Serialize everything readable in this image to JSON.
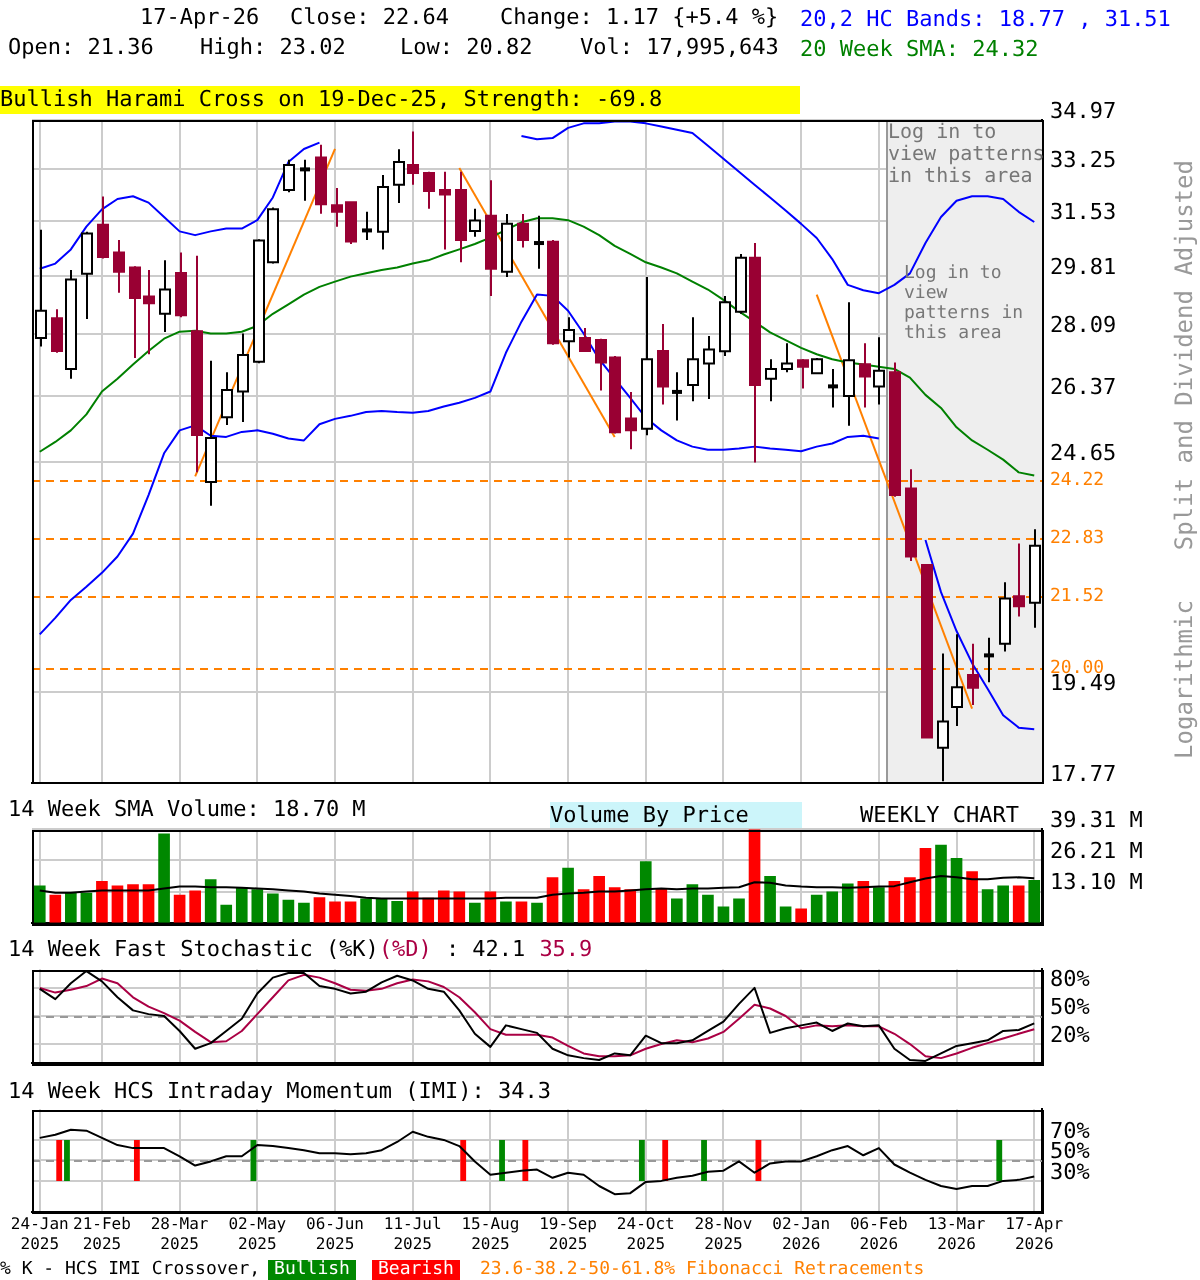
{
  "chart_data": [
    {
      "type": "candlestick",
      "log": true,
      "grid": true,
      "tick_labels": "y",
      "marker": "none",
      "legend": "top right",
      "categories": [
        "24-Jan 2025",
        null,
        null,
        null,
        "21-Feb 2025",
        null,
        null,
        null,
        null,
        "28-Mar 2025",
        null,
        null,
        null,
        null,
        "02-May 2025",
        null,
        null,
        null,
        null,
        "06-Jun 2025",
        null,
        null,
        null,
        null,
        "11-Jul 2025",
        null,
        null,
        null,
        null,
        "15-Aug 2025",
        null,
        null,
        null,
        null,
        "19-Sep 2025",
        null,
        null,
        null,
        null,
        "24-Oct 2025",
        null,
        null,
        null,
        null,
        "28-Nov 2025",
        null,
        null,
        null,
        null,
        "02-Jan 2026",
        null,
        null,
        null,
        null,
        "06-Feb 2026",
        null,
        null,
        null,
        null,
        "13-Mar 2026",
        null,
        null,
        null,
        null,
        "17-Apr 2026"
      ],
      "ohlc": [
        [
          27.99,
          31.26,
          27.75,
          28.78
        ],
        [
          28.56,
          28.82,
          27.57,
          27.62
        ],
        [
          27.12,
          30.0,
          26.85,
          29.71
        ],
        [
          29.89,
          31.2,
          28.54,
          31.14
        ],
        [
          31.42,
          32.34,
          30.36,
          30.4
        ],
        [
          30.54,
          30.94,
          29.31,
          29.95
        ],
        [
          30.08,
          30.12,
          27.42,
          29.16
        ],
        [
          29.2,
          30.0,
          27.53,
          29.0
        ],
        [
          28.69,
          30.3,
          28.16,
          29.41
        ],
        [
          29.91,
          30.54,
          28.59,
          28.65
        ],
        [
          28.18,
          30.44,
          24.4,
          25.35
        ],
        [
          24.16,
          27.35,
          23.58,
          25.27
        ],
        [
          25.81,
          27.03,
          25.61,
          26.54
        ],
        [
          26.5,
          28.12,
          25.69,
          27.51
        ],
        [
          27.32,
          30.96,
          27.28,
          30.92
        ],
        [
          30.24,
          31.98,
          30.2,
          31.92
        ],
        [
          32.56,
          33.58,
          32.48,
          33.4
        ],
        [
          33.25,
          33.58,
          32.2,
          33.25
        ],
        [
          33.66,
          34.1,
          31.78,
          32.09
        ],
        [
          32.05,
          32.62,
          31.36,
          31.84
        ],
        [
          32.15,
          32.15,
          30.81,
          30.89
        ],
        [
          31.24,
          31.84,
          30.94,
          31.24
        ],
        [
          31.2,
          33.06,
          30.64,
          32.66
        ],
        [
          32.73,
          33.94,
          32.13,
          33.5
        ],
        [
          33.4,
          34.56,
          32.73,
          33.13
        ],
        [
          33.13,
          33.17,
          31.94,
          32.52
        ],
        [
          32.56,
          33.17,
          30.64,
          32.41
        ],
        [
          32.56,
          33.17,
          30.24,
          30.94
        ],
        [
          31.22,
          31.94,
          31.04,
          31.56
        ],
        [
          31.71,
          32.88,
          29.22,
          30.04
        ],
        [
          29.95,
          31.77,
          29.79,
          31.45
        ],
        [
          31.45,
          31.77,
          30.7,
          30.94
        ],
        [
          30.84,
          31.71,
          30.04,
          30.84
        ],
        [
          30.88,
          30.94,
          27.8,
          27.84
        ],
        [
          27.9,
          28.59,
          27.44,
          28.22
        ],
        [
          27.99,
          28.28,
          27.6,
          27.62
        ],
        [
          27.93,
          27.97,
          26.53,
          27.3
        ],
        [
          27.44,
          27.48,
          25.39,
          25.42
        ],
        [
          25.78,
          26.49,
          24.98,
          25.47
        ],
        [
          25.51,
          29.79,
          25.34,
          27.39
        ],
        [
          27.62,
          28.39,
          26.15,
          26.64
        ],
        [
          26.49,
          27.03,
          25.73,
          26.49
        ],
        [
          26.68,
          28.59,
          26.24,
          27.39
        ],
        [
          27.27,
          28.05,
          26.3,
          27.66
        ],
        [
          27.61,
          29.22,
          27.48,
          29.03
        ],
        [
          28.75,
          30.5,
          28.69,
          30.38
        ],
        [
          30.38,
          30.84,
          24.65,
          26.68
        ],
        [
          26.85,
          27.39,
          26.24,
          27.12
        ],
        [
          27.12,
          27.84,
          27.03,
          27.27
        ],
        [
          27.36,
          27.39,
          26.58,
          27.18
        ],
        [
          27.0,
          27.42,
          27.0,
          27.39
        ],
        [
          26.64,
          27.12,
          26.07,
          26.64
        ],
        [
          26.38,
          29.03,
          25.59,
          27.36
        ],
        [
          27.25,
          27.84,
          26.07,
          26.91
        ],
        [
          26.64,
          28.01,
          26.15,
          27.07
        ],
        [
          27.03,
          27.3,
          23.8,
          23.84
        ],
        [
          24.0,
          24.48,
          22.29,
          22.39
        ],
        [
          22.2,
          22.2,
          18.61,
          18.61
        ],
        [
          18.42,
          20.28,
          17.8,
          18.92
        ],
        [
          19.2,
          20.68,
          18.83,
          19.59
        ],
        [
          19.84,
          20.48,
          19.24,
          19.58
        ],
        [
          20.24,
          20.61,
          19.69,
          20.24
        ],
        [
          20.48,
          21.81,
          20.32,
          21.45
        ],
        [
          21.5,
          22.69,
          21.06,
          21.28
        ],
        [
          21.36,
          23.02,
          20.82,
          22.64
        ]
      ],
      "colors": [
        "#ffffff",
        "#990033",
        "#ffffff",
        "#ffffff",
        "#990033",
        "#990033",
        "#990033",
        "#990033",
        "#ffffff",
        "#990033",
        "#990033",
        "#ffffff",
        "#ffffff",
        "#ffffff",
        "#ffffff",
        "#ffffff",
        "#ffffff",
        "#000000",
        "#990033",
        "#990033",
        "#990033",
        "#000000",
        "#ffffff",
        "#ffffff",
        "#990033",
        "#990033",
        "#990033",
        "#990033",
        "#ffffff",
        "#990033",
        "#ffffff",
        "#990033",
        "#000000",
        "#990033",
        "#ffffff",
        "#990033",
        "#990033",
        "#990033",
        "#990033",
        "#ffffff",
        "#990033",
        "#000000",
        "#ffffff",
        "#ffffff",
        "#ffffff",
        "#ffffff",
        "#990033",
        "#ffffff",
        "#ffffff",
        "#990033",
        "#ffffff",
        "#000000",
        "#ffffff",
        "#990033",
        "#ffffff",
        "#990033",
        "#990033",
        "#990033",
        "#ffffff",
        "#ffffff",
        "#990033",
        "#000000",
        "#ffffff",
        "#990033",
        "#ffffff"
      ],
      "series": [
        {
          "type": "line",
          "name": "20,2 HC Bands: 18.77 , 31.51",
          "color": "#0000ff",
          "values": [
            30.04,
            30.2,
            30.64,
            31.36,
            31.92,
            32.26,
            32.35,
            32.14,
            31.67,
            31.21,
            31.09,
            31.21,
            31.3,
            31.3,
            31.57,
            32.31,
            33.5,
            33.95,
            34.17,
            null,
            null,
            null,
            null,
            null,
            null,
            null,
            null,
            null,
            null,
            null,
            null,
            34.4,
            34.29,
            34.33,
            34.69,
            34.85,
            34.85,
            34.92,
            34.92,
            34.85,
            34.74,
            34.62,
            34.51,
            34.06,
            33.61,
            33.17,
            32.73,
            32.31,
            31.88,
            31.45,
            31.0,
            30.34,
            29.55,
            29.39,
            29.3,
            29.55,
            29.9,
            30.84,
            31.67,
            32.2,
            32.35,
            32.35,
            32.26,
            31.84,
            31.51
          ]
        },
        {
          "type": "line",
          "color": "#0000ff",
          "values": [
            20.68,
            21.03,
            21.42,
            21.71,
            22.02,
            22.39,
            22.92,
            23.84,
            24.88,
            25.47,
            25.6,
            25.33,
            25.3,
            25.43,
            25.47,
            25.38,
            25.26,
            25.21,
            25.63,
            25.77,
            25.85,
            25.95,
            25.98,
            25.95,
            25.93,
            25.98,
            26.1,
            26.2,
            26.33,
            26.5,
            27.57,
            28.46,
            29.26,
            29.22,
            28.78,
            28.12,
            27.39,
            26.85,
            26.33,
            25.8,
            25.47,
            25.21,
            25.05,
            24.97,
            24.97,
            25.0,
            25.05,
            25.0,
            24.97,
            24.93,
            25.05,
            25.13,
            25.3,
            25.33,
            25.26,
            null,
            null,
            22.77,
            21.59,
            20.75,
            20.08,
            19.56,
            19.04,
            18.8,
            18.77
          ]
        },
        {
          "type": "line",
          "name": "20 Week SMA: 24.32",
          "color": "#008000",
          "values": [
            24.92,
            25.17,
            25.47,
            25.89,
            26.5,
            26.85,
            27.24,
            27.62,
            27.97,
            28.17,
            28.2,
            28.12,
            28.12,
            28.17,
            28.34,
            28.69,
            28.97,
            29.26,
            29.49,
            29.65,
            29.8,
            29.9,
            30.0,
            30.08,
            30.2,
            30.3,
            30.48,
            30.64,
            30.81,
            31.01,
            31.26,
            31.5,
            31.63,
            31.63,
            31.57,
            31.36,
            31.09,
            30.75,
            30.5,
            30.24,
            30.08,
            29.9,
            29.65,
            29.41,
            29.1,
            28.76,
            28.46,
            28.15,
            27.93,
            27.71,
            27.53,
            27.39,
            27.3,
            27.24,
            27.18,
            27.12,
            26.88,
            26.41,
            26.06,
            25.55,
            25.21,
            24.97,
            24.72,
            24.4,
            24.32
          ]
        },
        {
          "type": "line",
          "color": "#ff8000",
          "values": [
            null,
            null,
            null,
            null,
            null,
            null,
            null,
            null,
            null,
            null,
            24.3,
            null,
            null,
            null,
            null,
            null,
            null,
            null,
            null,
            33.95,
            null,
            null,
            null,
            null,
            null,
            null,
            null,
            null,
            null,
            null,
            null,
            null,
            null,
            null,
            null,
            null,
            null,
            null,
            null,
            null,
            null,
            null,
            null,
            null,
            null,
            null,
            null,
            null,
            null,
            null,
            null,
            null,
            null,
            null,
            null,
            null,
            null,
            null,
            null,
            null,
            null,
            null,
            null,
            null,
            null
          ]
        },
        {
          "type": "line",
          "color": "#ff8000",
          "values": [
            null,
            null,
            null,
            null,
            null,
            null,
            null,
            null,
            null,
            null,
            null,
            null,
            null,
            null,
            null,
            null,
            null,
            null,
            null,
            null,
            null,
            null,
            null,
            null,
            null,
            null,
            null,
            33.3,
            null,
            null,
            null,
            null,
            null,
            null,
            null,
            null,
            null,
            25.3,
            null,
            null,
            null,
            null,
            null,
            null,
            null,
            null,
            null,
            null,
            null,
            null,
            null,
            null,
            null,
            null,
            null,
            null,
            null,
            null,
            null,
            null,
            null,
            null,
            null,
            null,
            null
          ]
        },
        {
          "type": "line",
          "color": "#ff8000",
          "values": [
            null,
            null,
            null,
            null,
            null,
            null,
            null,
            null,
            null,
            null,
            null,
            null,
            null,
            null,
            null,
            null,
            null,
            null,
            null,
            null,
            null,
            null,
            null,
            null,
            null,
            null,
            null,
            null,
            null,
            null,
            null,
            null,
            null,
            null,
            null,
            null,
            null,
            null,
            null,
            null,
            null,
            null,
            null,
            null,
            null,
            null,
            null,
            null,
            null,
            null,
            29.26,
            null,
            null,
            null,
            null,
            null,
            null,
            null,
            null,
            null,
            19.17,
            null,
            null,
            null,
            null
          ]
        }
      ],
      "ylim": [
        17.77,
        34.97
      ],
      "yticks": [
        17.77,
        19.49,
        24.65,
        26.37,
        28.09,
        29.81,
        31.53,
        33.25,
        34.97
      ],
      "ref_lines": [
        {
          "axis": "y",
          "value": 24.22,
          "label": "24.22",
          "color": "#ff8000",
          "line_style": "dashed"
        },
        {
          "axis": "y",
          "value": 22.83,
          "label": "22.83",
          "color": "#ff8000",
          "line_style": "dashed"
        },
        {
          "axis": "y",
          "value": 21.52,
          "label": "21.52",
          "color": "#ff8000",
          "line_style": "dashed"
        },
        {
          "axis": "y",
          "value": 20.0,
          "label": "20.00",
          "color": "#ff8000",
          "line_style": "dashed"
        }
      ],
      "bands": [
        {
          "axis": "x",
          "from": "06-Feb 2026",
          "to": "17-Apr 2026",
          "color": "#eeeeee"
        }
      ],
      "annotations": [
        "17-Apr-26",
        "Close: 22.64",
        "Change: 1.17 {+5.4 %}",
        "Open: 21.36",
        "High: 23.02",
        "Low: 20.82",
        "Vol: 17,995,643",
        "Bullish Harami Cross on 19-Dec-25, Strength: -69.8",
        "Log in to view patterns in this area",
        "Log in to view patterns in this area",
        "Split and Dividend Adjusted",
        "Logarithmic",
        "WEEKLY CHART",
        "Volume By Price",
        "23.6-38.2-50-61.8% Fibonacci Retracements"
      ]
    },
    {
      "type": "bar",
      "title": "14 Week SMA Volume: 18.70 M",
      "grid": true,
      "tick_labels": "y",
      "marker": "none",
      "categories": [
        "24-Jan 2025",
        null,
        null,
        null,
        "21-Feb 2025",
        null,
        null,
        null,
        null,
        "28-Mar 2025",
        null,
        null,
        null,
        null,
        "02-May 2025",
        null,
        null,
        null,
        null,
        "06-Jun 2025",
        null,
        null,
        null,
        null,
        "11-Jul 2025",
        null,
        null,
        null,
        null,
        "15-Aug 2025",
        null,
        null,
        null,
        null,
        "19-Sep 2025",
        null,
        null,
        null,
        null,
        "24-Oct 2025",
        null,
        null,
        null,
        null,
        "28-Nov 2025",
        null,
        null,
        null,
        null,
        "02-Jan 2026",
        null,
        null,
        null,
        null,
        "06-Feb 2026",
        null,
        null,
        null,
        null,
        "13-Mar 2026",
        null,
        null,
        null,
        null,
        "17-Apr 2026"
      ],
      "series": [
        {
          "type": "bar",
          "values": [
            15.7,
            11.8,
            12.6,
            12.6,
            17.6,
            15.7,
            16.2,
            16.2,
            37.5,
            11.8,
            13.6,
            18.3,
            7.6,
            14.9,
            14.1,
            12.3,
            9.7,
            8.4,
            10.7,
            8.9,
            8.9,
            10.2,
            10.2,
            9.2,
            13.1,
            10.5,
            13.6,
            13.1,
            8.4,
            13.1,
            8.9,
            8.9,
            8.4,
            19.1,
            23.1,
            14.1,
            19.7,
            14.9,
            14.1,
            25.9,
            14.4,
            10.2,
            16.2,
            11.8,
            6.8,
            10.2,
            39.3,
            19.7,
            6.8,
            6.0,
            11.8,
            13.1,
            16.5,
            17.6,
            14.9,
            17.6,
            19.1,
            31.4,
            32.8,
            27.2,
            21.7,
            14.1,
            15.7,
            15.7,
            18.0
          ],
          "colors": [
            "#008800",
            "#ff0000",
            "#008800",
            "#008800",
            "#ff0000",
            "#ff0000",
            "#ff0000",
            "#ff0000",
            "#008800",
            "#ff0000",
            "#ff0000",
            "#008800",
            "#008800",
            "#008800",
            "#008800",
            "#008800",
            "#008800",
            "#008800",
            "#ff0000",
            "#ff0000",
            "#ff0000",
            "#008800",
            "#008800",
            "#008800",
            "#ff0000",
            "#ff0000",
            "#ff0000",
            "#ff0000",
            "#008800",
            "#ff0000",
            "#008800",
            "#ff0000",
            "#008800",
            "#ff0000",
            "#008800",
            "#ff0000",
            "#ff0000",
            "#ff0000",
            "#ff0000",
            "#008800",
            "#ff0000",
            "#008800",
            "#008800",
            "#008800",
            "#008800",
            "#008800",
            "#ff0000",
            "#008800",
            "#008800",
            "#ff0000",
            "#008800",
            "#008800",
            "#008800",
            "#ff0000",
            "#008800",
            "#ff0000",
            "#ff0000",
            "#ff0000",
            "#008800",
            "#008800",
            "#ff0000",
            "#008800",
            "#008800",
            "#ff0000",
            "#008800"
          ]
        },
        {
          "type": "line",
          "color": "#000000",
          "values": [
            13.6,
            12.6,
            12.6,
            13.1,
            13.6,
            13.6,
            13.6,
            13.6,
            14.4,
            15.2,
            15.2,
            14.9,
            14.9,
            14.7,
            14.4,
            14.1,
            13.6,
            13.1,
            12.3,
            11.8,
            11.3,
            10.5,
            10.2,
            10.2,
            10.2,
            10.2,
            10.2,
            10.2,
            10.2,
            10.2,
            10.5,
            10.5,
            10.5,
            11.8,
            12.3,
            12.6,
            13.1,
            13.1,
            13.6,
            14.1,
            14.4,
            14.1,
            14.4,
            14.4,
            14.7,
            14.9,
            17.0,
            16.8,
            15.7,
            15.2,
            14.9,
            14.9,
            14.7,
            14.9,
            15.2,
            15.4,
            17.0,
            18.6,
            19.7,
            19.1,
            18.3,
            18.3,
            18.9,
            19.1,
            18.7
          ]
        }
      ],
      "ylim": [
        0,
        39.31
      ],
      "yticks": [
        {
          "value": 13.1,
          "label": "13.10 M"
        },
        {
          "value": 26.21,
          "label": "26.21 M"
        },
        {
          "value": 39.31,
          "label": "39.31 M"
        }
      ]
    },
    {
      "type": "line",
      "title": "14 Week Fast Stochastic (%K)",
      "grid": true,
      "tick_labels": "y",
      "marker": "none",
      "legend": "top left",
      "categories": [
        "24-Jan 2025",
        null,
        null,
        null,
        "21-Feb 2025",
        null,
        null,
        null,
        null,
        "28-Mar 2025",
        null,
        null,
        null,
        null,
        "02-May 2025",
        null,
        null,
        null,
        null,
        "06-Jun 2025",
        null,
        null,
        null,
        null,
        "11-Jul 2025",
        null,
        null,
        null,
        null,
        "15-Aug 2025",
        null,
        null,
        null,
        null,
        "19-Sep 2025",
        null,
        null,
        null,
        null,
        "24-Oct 2025",
        null,
        null,
        null,
        null,
        "28-Nov 2025",
        null,
        null,
        null,
        null,
        "02-Jan 2026",
        null,
        null,
        null,
        null,
        "06-Feb 2026",
        null,
        null,
        null,
        null,
        "13-Mar 2026",
        null,
        null,
        null,
        null,
        "17-Apr 2026"
      ],
      "series": [
        {
          "color": "#000000",
          "values": [
            79,
            68,
            85,
            98,
            87,
            70,
            56,
            52,
            50,
            34,
            15,
            21,
            34,
            47,
            74,
            91,
            96,
            96,
            82,
            79,
            74,
            76,
            86,
            93,
            88,
            79,
            76,
            56,
            31,
            17,
            40,
            36,
            32,
            15,
            8,
            5,
            3,
            10,
            8,
            29,
            21,
            21,
            24,
            34,
            44,
            63,
            80,
            32,
            37,
            40,
            43,
            34,
            42,
            39,
            40,
            15,
            3,
            2,
            10,
            18,
            21,
            24,
            34,
            35,
            42.1
          ]
        },
        {
          "name": "(%D)",
          "color": "#aa0044",
          "values": [
            80,
            75,
            78,
            82,
            90,
            85,
            70,
            60,
            53,
            45,
            33,
            22,
            23,
            34,
            52,
            70,
            88,
            94,
            91,
            85,
            78,
            77,
            79,
            85,
            89,
            87,
            81,
            70,
            54,
            36,
            30,
            30,
            30,
            27,
            18,
            10,
            7,
            7,
            8,
            15,
            20,
            24,
            22,
            26,
            33,
            47,
            62,
            58,
            50,
            37,
            40,
            39,
            40,
            39,
            39,
            31,
            20,
            7,
            5,
            10,
            16,
            21,
            26,
            31,
            35.9
          ]
        }
      ],
      "ylim": [
        0,
        100
      ],
      "yticks": [
        {
          "value": 20,
          "label": "20%"
        },
        {
          "value": 50,
          "label": "50%"
        },
        {
          "value": 80,
          "label": "80%"
        }
      ],
      "ref_lines": [
        {
          "axis": "y",
          "value": 50,
          "color": "#999999",
          "line_style": "dashed"
        }
      ],
      "annotations": [
        ": 42.1",
        "35.9"
      ]
    },
    {
      "type": "line",
      "title": "14 Week HCS Intraday Momentum (IMI): 34.3",
      "grid": true,
      "marker": "none",
      "legend": "bottom",
      "legend_title": "% K - HCS IMI Crossover,",
      "categories": [
        "24-Jan 2025",
        null,
        null,
        null,
        "21-Feb 2025",
        null,
        null,
        null,
        null,
        "28-Mar 2025",
        null,
        null,
        null,
        null,
        "02-May 2025",
        null,
        null,
        null,
        null,
        "06-Jun 2025",
        null,
        null,
        null,
        null,
        "11-Jul 2025",
        null,
        null,
        null,
        null,
        "15-Aug 2025",
        null,
        null,
        null,
        null,
        "19-Sep 2025",
        null,
        null,
        null,
        null,
        "24-Oct 2025",
        null,
        null,
        null,
        null,
        "28-Nov 2025",
        null,
        null,
        null,
        null,
        "02-Jan 2026",
        null,
        null,
        null,
        null,
        "06-Feb 2026",
        null,
        null,
        null,
        null,
        "13-Mar 2026",
        null,
        null,
        null,
        null,
        "17-Apr 2026"
      ],
      "series": [
        {
          "type": "bar",
          "name": "Bullish",
          "color": "#008800",
          "values": [
            null,
            null,
            40,
            null,
            null,
            null,
            null,
            null,
            null,
            null,
            null,
            null,
            null,
            null,
            40,
            null,
            null,
            null,
            null,
            null,
            null,
            null,
            null,
            null,
            null,
            null,
            null,
            null,
            null,
            null,
            40,
            null,
            null,
            null,
            null,
            null,
            null,
            null,
            null,
            40,
            null,
            null,
            null,
            40,
            null,
            null,
            null,
            null,
            null,
            null,
            null,
            null,
            null,
            null,
            null,
            null,
            null,
            null,
            null,
            null,
            null,
            null,
            40,
            null,
            null
          ],
          "base": [
            null,
            null,
            30,
            null,
            null,
            null,
            null,
            null,
            null,
            null,
            null,
            null,
            null,
            null,
            30,
            null,
            null,
            null,
            null,
            null,
            null,
            null,
            null,
            null,
            null,
            null,
            null,
            null,
            null,
            null,
            30,
            null,
            null,
            null,
            null,
            null,
            null,
            null,
            null,
            30,
            null,
            null,
            null,
            30,
            null,
            null,
            null,
            null,
            null,
            null,
            null,
            null,
            null,
            null,
            null,
            null,
            null,
            null,
            null,
            null,
            null,
            null,
            30,
            null,
            null
          ]
        },
        {
          "type": "bar",
          "name": "Bearish",
          "color": "#ff0000",
          "values": [
            null,
            40,
            null,
            null,
            null,
            null,
            40,
            null,
            null,
            null,
            null,
            null,
            null,
            null,
            null,
            null,
            null,
            null,
            null,
            null,
            null,
            null,
            null,
            null,
            null,
            null,
            null,
            40,
            null,
            null,
            null,
            40,
            null,
            null,
            null,
            null,
            null,
            null,
            null,
            null,
            40,
            null,
            null,
            null,
            null,
            null,
            40,
            null,
            null,
            null,
            null,
            null,
            null,
            null,
            null,
            null,
            null,
            null,
            null,
            null,
            null,
            null,
            null,
            null,
            null
          ],
          "base": [
            null,
            30,
            null,
            null,
            null,
            null,
            30,
            null,
            null,
            null,
            null,
            null,
            null,
            null,
            null,
            null,
            null,
            null,
            null,
            null,
            null,
            null,
            null,
            null,
            null,
            null,
            null,
            30,
            null,
            null,
            null,
            30,
            null,
            null,
            null,
            null,
            null,
            null,
            null,
            null,
            30,
            null,
            null,
            null,
            null,
            null,
            30,
            null,
            null,
            null,
            null,
            null,
            null,
            null,
            null,
            null,
            null,
            null,
            null,
            null,
            null,
            null,
            null,
            null,
            null
          ]
        },
        {
          "type": "line",
          "color": "#000000",
          "values": [
            72,
            75,
            80,
            79,
            72,
            65,
            62,
            62,
            62,
            54,
            45,
            49,
            54,
            54,
            65,
            64,
            62,
            60,
            57,
            57,
            56,
            57,
            60,
            68,
            78,
            73,
            70,
            64,
            49,
            36,
            38,
            40,
            41,
            33,
            38,
            36,
            25,
            17,
            18,
            29,
            30,
            33,
            35,
            39,
            40,
            49,
            38,
            47,
            49,
            49,
            54,
            60,
            64,
            55,
            62,
            46,
            38,
            31,
            25,
            22,
            25,
            25,
            30,
            31,
            34.3
          ]
        }
      ],
      "ylim": [
        0,
        100
      ],
      "yticks": [
        {
          "value": 30,
          "label": "30%"
        },
        {
          "value": 50,
          "label": "50%"
        },
        {
          "value": 70,
          "label": "70%"
        }
      ],
      "ref_lines": [
        {
          "axis": "y",
          "value": 50,
          "color": "#999999",
          "line_style": "dashed"
        }
      ]
    }
  ]
}
